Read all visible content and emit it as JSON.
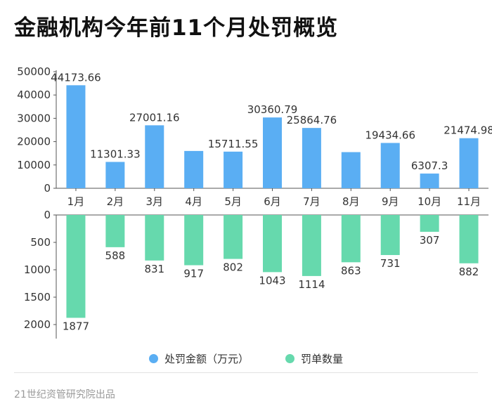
{
  "title": "金融机构今年前11个月处罚概览",
  "source": "21世纪资管研究院出品",
  "chart_data": {
    "type": "bar",
    "categories": [
      "1月",
      "2月",
      "3月",
      "4月",
      "5月",
      "6月",
      "7月",
      "8月",
      "9月",
      "10月",
      "11月"
    ],
    "series": [
      {
        "name": "处罚金额（万元）",
        "color": "#5aaef3",
        "values": [
          44173.66,
          11301.33,
          27001.16,
          16000,
          15711.55,
          30360.79,
          25864.76,
          15500,
          19434.66,
          6307.3,
          21474.98
        ],
        "labels": [
          "44173.66",
          "11301.33",
          "27001.16",
          "",
          "15711.55",
          "30360.79",
          "25864.76",
          "",
          "19434.66",
          "6307.3",
          "21474.98"
        ],
        "yticks": [
          0,
          10000,
          20000,
          30000,
          40000,
          50000
        ],
        "ylim": [
          0,
          50000
        ]
      },
      {
        "name": "罚单数量",
        "color": "#66d9ad",
        "values": [
          1877,
          588,
          831,
          917,
          802,
          1043,
          1114,
          863,
          731,
          307,
          882
        ],
        "labels": [
          "1877",
          "588",
          "831",
          "917",
          "802",
          "1043",
          "1114",
          "863",
          "731",
          "307",
          "882"
        ],
        "yticks": [
          0,
          500,
          1000,
          1500,
          2000
        ],
        "ylim": [
          0,
          2000
        ],
        "inverted": true
      }
    ],
    "legend_position": "bottom",
    "grid": false
  }
}
